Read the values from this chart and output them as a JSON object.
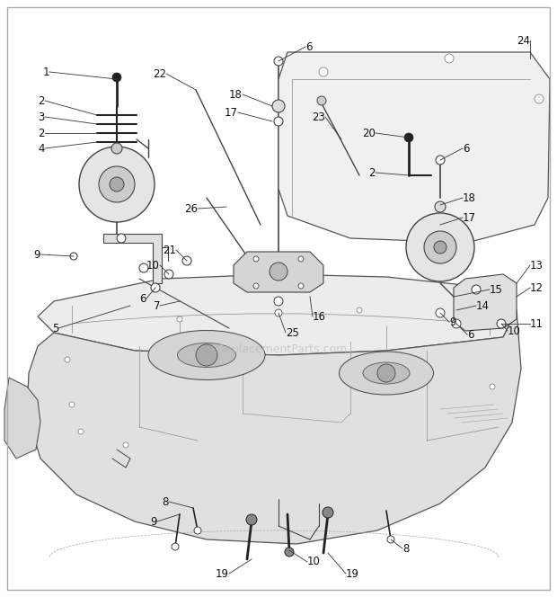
{
  "bg_color": "#ffffff",
  "watermark": "eReplacementParts.com",
  "fig_width": 6.2,
  "fig_height": 6.64,
  "dpi": 100
}
